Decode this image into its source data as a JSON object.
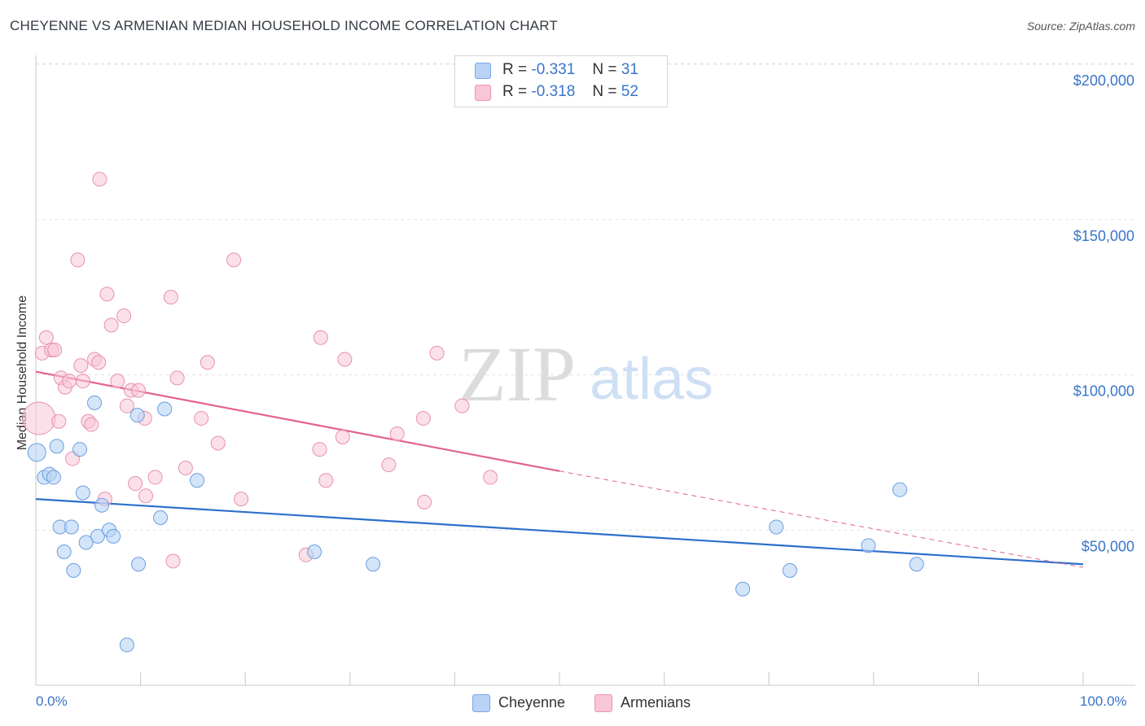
{
  "title": "CHEYENNE VS ARMENIAN MEDIAN HOUSEHOLD INCOME CORRELATION CHART",
  "source": "Source: ZipAtlas.com",
  "watermark": {
    "zip": "ZIP",
    "atlas": "atlas"
  },
  "legend": {
    "rows": [
      {
        "r_label": "R =",
        "r_value": "-0.331",
        "n_label": "N =",
        "n_value": "31",
        "color": "#b8d3f5"
      },
      {
        "r_label": "R =",
        "r_value": "-0.318",
        "n_label": "N =",
        "n_value": "52",
        "color": "#f8c6d6"
      }
    ]
  },
  "bottom_legend": [
    {
      "label": "Cheyenne",
      "color": "#b8d3f5"
    },
    {
      "label": "Armenians",
      "color": "#f8c6d6"
    }
  ],
  "chart_data": {
    "type": "scatter",
    "title": "CHEYENNE VS ARMENIAN MEDIAN HOUSEHOLD INCOME CORRELATION CHART",
    "xlabel": "",
    "ylabel": "Median Household Income",
    "xlim": [
      0,
      100
    ],
    "ylim": [
      0,
      205000
    ],
    "x_tick_labels": [
      "0.0%",
      "100.0%"
    ],
    "y_ticks": [
      50000,
      100000,
      150000,
      200000
    ],
    "y_tick_labels": [
      "$50,000",
      "$100,000",
      "$150,000",
      "$200,000"
    ],
    "grid": true,
    "colors": {
      "blue_point": "#b8d3f5",
      "blue_line": "#2d6fcc",
      "pink_point": "#f8c6d6",
      "pink_line": "#e3638c",
      "axis_text": "#3a74c9"
    },
    "series": [
      {
        "name": "Cheyenne",
        "color": "#b8d3f5",
        "trend": {
          "x": [
            0,
            100
          ],
          "y": [
            60000,
            39000
          ]
        },
        "points": [
          [
            0.1,
            75000
          ],
          [
            0.8,
            67000
          ],
          [
            1.3,
            68000
          ],
          [
            1.7,
            67000
          ],
          [
            2.0,
            77000
          ],
          [
            2.3,
            51000
          ],
          [
            2.7,
            43000
          ],
          [
            3.4,
            51000
          ],
          [
            3.6,
            37000
          ],
          [
            4.2,
            76000
          ],
          [
            4.5,
            62000
          ],
          [
            4.8,
            46000
          ],
          [
            5.6,
            91000
          ],
          [
            5.9,
            48000
          ],
          [
            6.3,
            58000
          ],
          [
            7.0,
            50000
          ],
          [
            7.4,
            48000
          ],
          [
            9.8,
            39000
          ],
          [
            9.7,
            87000
          ],
          [
            11.9,
            54000
          ],
          [
            12.3,
            89000
          ],
          [
            8.7,
            13000
          ],
          [
            15.4,
            66000
          ],
          [
            26.6,
            43000
          ],
          [
            32.2,
            39000
          ],
          [
            67.5,
            31000
          ],
          [
            70.7,
            51000
          ],
          [
            72.0,
            37000
          ],
          [
            79.5,
            45000
          ],
          [
            82.5,
            63000
          ],
          [
            84.1,
            39000
          ]
        ]
      },
      {
        "name": "Armenians",
        "color": "#f8c6d6",
        "trend": {
          "x": [
            0,
            50
          ],
          "y": [
            101000,
            69000
          ]
        },
        "trend_dashed": {
          "x": [
            50,
            100
          ],
          "y": [
            69000,
            38000
          ]
        },
        "points": [
          [
            0.3,
            86000
          ],
          [
            0.6,
            107000
          ],
          [
            1.0,
            112000
          ],
          [
            1.5,
            108000
          ],
          [
            1.8,
            108000
          ],
          [
            2.2,
            85000
          ],
          [
            2.4,
            99000
          ],
          [
            2.8,
            96000
          ],
          [
            3.2,
            98000
          ],
          [
            3.5,
            73000
          ],
          [
            4.0,
            137000
          ],
          [
            4.3,
            103000
          ],
          [
            4.5,
            98000
          ],
          [
            5.0,
            85000
          ],
          [
            5.3,
            84000
          ],
          [
            5.6,
            105000
          ],
          [
            6.0,
            104000
          ],
          [
            6.6,
            60000
          ],
          [
            6.8,
            126000
          ],
          [
            7.2,
            116000
          ],
          [
            7.8,
            98000
          ],
          [
            8.4,
            119000
          ],
          [
            8.7,
            90000
          ],
          [
            9.1,
            95000
          ],
          [
            9.5,
            65000
          ],
          [
            9.8,
            95000
          ],
          [
            10.4,
            86000
          ],
          [
            10.5,
            61000
          ],
          [
            11.4,
            67000
          ],
          [
            12.9,
            125000
          ],
          [
            13.1,
            40000
          ],
          [
            13.5,
            99000
          ],
          [
            14.3,
            70000
          ],
          [
            15.8,
            86000
          ],
          [
            16.4,
            104000
          ],
          [
            17.4,
            78000
          ],
          [
            18.9,
            137000
          ],
          [
            19.6,
            60000
          ],
          [
            25.8,
            42000
          ],
          [
            27.1,
            76000
          ],
          [
            27.2,
            112000
          ],
          [
            27.7,
            66000
          ],
          [
            29.3,
            80000
          ],
          [
            29.5,
            105000
          ],
          [
            33.7,
            71000
          ],
          [
            34.5,
            81000
          ],
          [
            37.0,
            86000
          ],
          [
            37.1,
            59000
          ],
          [
            38.3,
            107000
          ],
          [
            40.7,
            90000
          ],
          [
            43.4,
            67000
          ],
          [
            6.1,
            163000
          ]
        ]
      }
    ]
  }
}
